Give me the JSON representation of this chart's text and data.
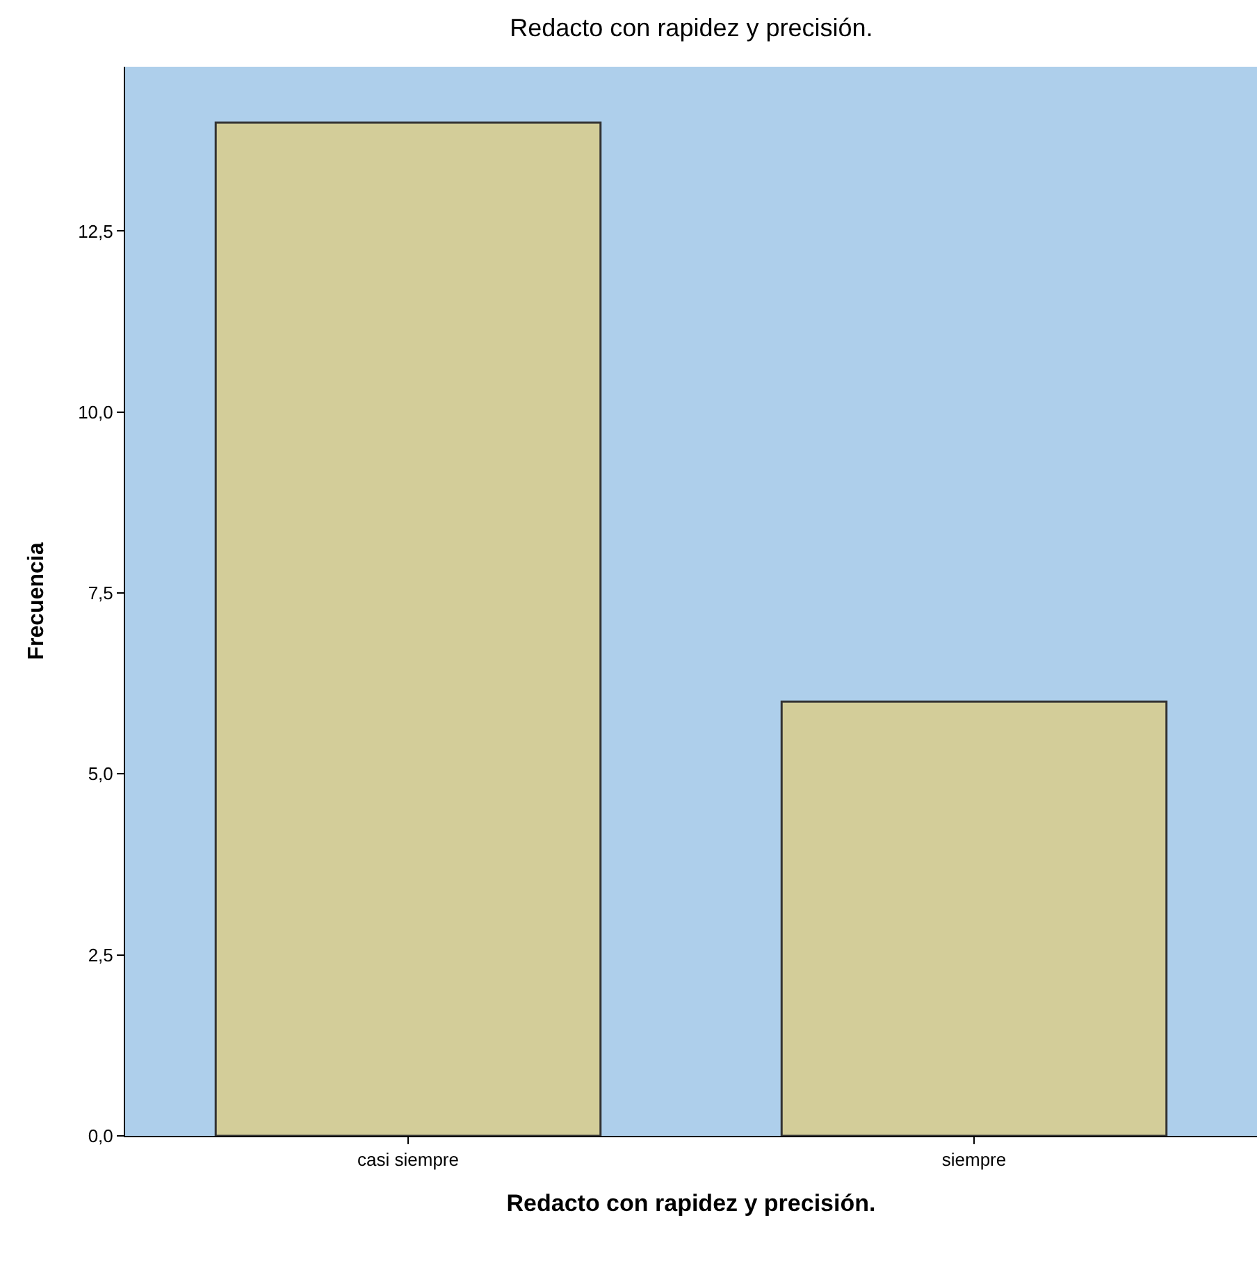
{
  "chart_data": {
    "type": "bar",
    "title": "Redacto con rapidez y precisión.",
    "xlabel": "Redacto con rapidez y precisión.",
    "ylabel": "Frecuencia",
    "categories": [
      "casi siempre",
      "siempre"
    ],
    "series": [
      {
        "color": "#d3cd99",
        "values": [
          14,
          6
        ]
      }
    ],
    "ylim": [
      0,
      14.77
    ],
    "yticks": [
      {
        "value": 0,
        "label": "0,0"
      },
      {
        "value": 2.5,
        "label": "2,5"
      },
      {
        "value": 5,
        "label": "5,0"
      },
      {
        "value": 7.5,
        "label": "7,5"
      },
      {
        "value": 10,
        "label": "10,0"
      },
      {
        "value": 12.5,
        "label": "12,5"
      }
    ]
  }
}
